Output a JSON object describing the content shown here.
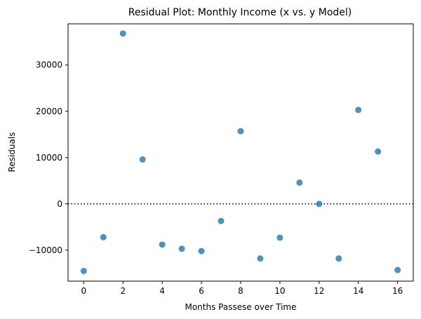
{
  "chart_data": {
    "type": "scatter",
    "title": "Residual Plot: Monthly Income (x vs. y Model)",
    "xlabel": "Months Passese over Time",
    "ylabel": "Residuals",
    "xlim": [
      -0.8,
      16.8
    ],
    "ylim": [
      -16700,
      38900
    ],
    "xticks": [
      0,
      2,
      4,
      6,
      8,
      10,
      12,
      14,
      16
    ],
    "yticks": [
      -10000,
      0,
      10000,
      20000,
      30000
    ],
    "grid": false,
    "reference_line": {
      "y": 0,
      "style": "dotted",
      "color": "#000000"
    },
    "point_color": "#1f77b4",
    "points": [
      {
        "x": 0,
        "y": -14500
      },
      {
        "x": 1,
        "y": -7200
      },
      {
        "x": 2,
        "y": 36800
      },
      {
        "x": 3,
        "y": 9600
      },
      {
        "x": 4,
        "y": -8800
      },
      {
        "x": 5,
        "y": -9700
      },
      {
        "x": 6,
        "y": -10200
      },
      {
        "x": 7,
        "y": -3700
      },
      {
        "x": 8,
        "y": 15700
      },
      {
        "x": 9,
        "y": -11800
      },
      {
        "x": 10,
        "y": -7300
      },
      {
        "x": 11,
        "y": 4600
      },
      {
        "x": 12,
        "y": 0
      },
      {
        "x": 13,
        "y": -11800
      },
      {
        "x": 14,
        "y": 20300
      },
      {
        "x": 15,
        "y": 11300
      },
      {
        "x": 16,
        "y": -14300
      }
    ]
  }
}
